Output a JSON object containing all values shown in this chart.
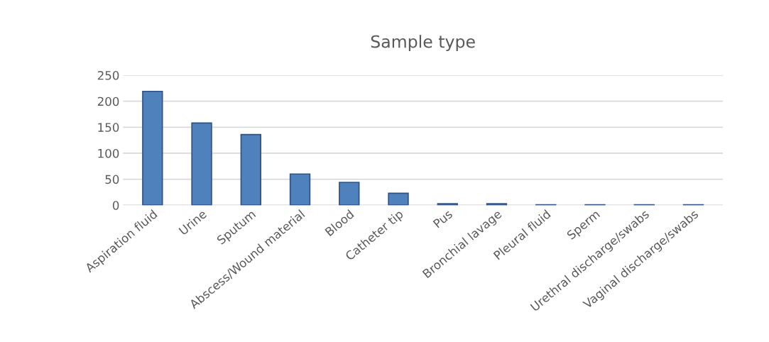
{
  "chart_data": {
    "type": "bar",
    "title": "Sample type",
    "categories": [
      "Aspiration fluid",
      "Urine",
      "Sputum",
      "Abscess/Wound material",
      "Blood",
      "Catheter tip",
      "Pus",
      "Bronchial lavage",
      "Pleural fluid",
      "Sperm",
      "Urethral discharge/swabs",
      "Vaginal discharge/swabs"
    ],
    "values": [
      219,
      158,
      136,
      60,
      44,
      23,
      3,
      3,
      1,
      1,
      1,
      1
    ],
    "color": "#4f81bd",
    "ylim": [
      0,
      250
    ],
    "yticks": [
      0,
      50,
      100,
      150,
      200,
      250
    ],
    "grid": "y",
    "legend": false
  }
}
